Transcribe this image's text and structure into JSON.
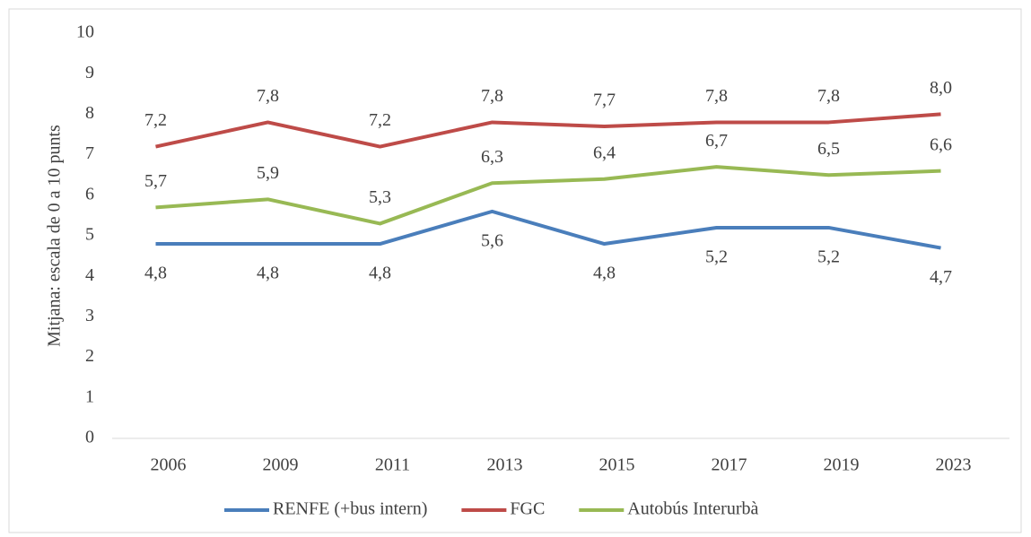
{
  "chart_data": {
    "type": "line",
    "y_label": "Mitjana: escala de 0 a 10 punts",
    "categories": [
      "2006",
      "2009",
      "2011",
      "2013",
      "2015",
      "2017",
      "2019",
      "2023"
    ],
    "series": [
      {
        "name": "RENFE (+bus intern)",
        "color": "#4a7ebb",
        "values": [
          4.8,
          4.8,
          4.8,
          5.6,
          4.8,
          5.2,
          5.2,
          4.7
        ],
        "value_labels": [
          "4,8",
          "4,8",
          "4,8",
          "5,6",
          "4,8",
          "5,2",
          "5,2",
          "4,7"
        ]
      },
      {
        "name": "FGC",
        "color": "#be4b48",
        "values": [
          7.2,
          7.8,
          7.2,
          7.8,
          7.7,
          7.8,
          7.8,
          8.0
        ],
        "value_labels": [
          "7,2",
          "7,8",
          "7,2",
          "7,8",
          "7,7",
          "7,8",
          "7,8",
          "8,0"
        ]
      },
      {
        "name": "Autobús Interurbà",
        "color": "#98b954",
        "values": [
          5.7,
          5.9,
          5.3,
          6.3,
          6.4,
          6.7,
          6.5,
          6.6
        ],
        "value_labels": [
          "5,7",
          "5,9",
          "5,3",
          "6,3",
          "6,4",
          "6,7",
          "6,5",
          "6,6"
        ]
      }
    ],
    "ylim": [
      0,
      10
    ],
    "yticks": [
      0,
      1,
      2,
      3,
      4,
      5,
      6,
      7,
      8,
      9,
      10
    ],
    "grid": false,
    "legend": "bottom"
  }
}
